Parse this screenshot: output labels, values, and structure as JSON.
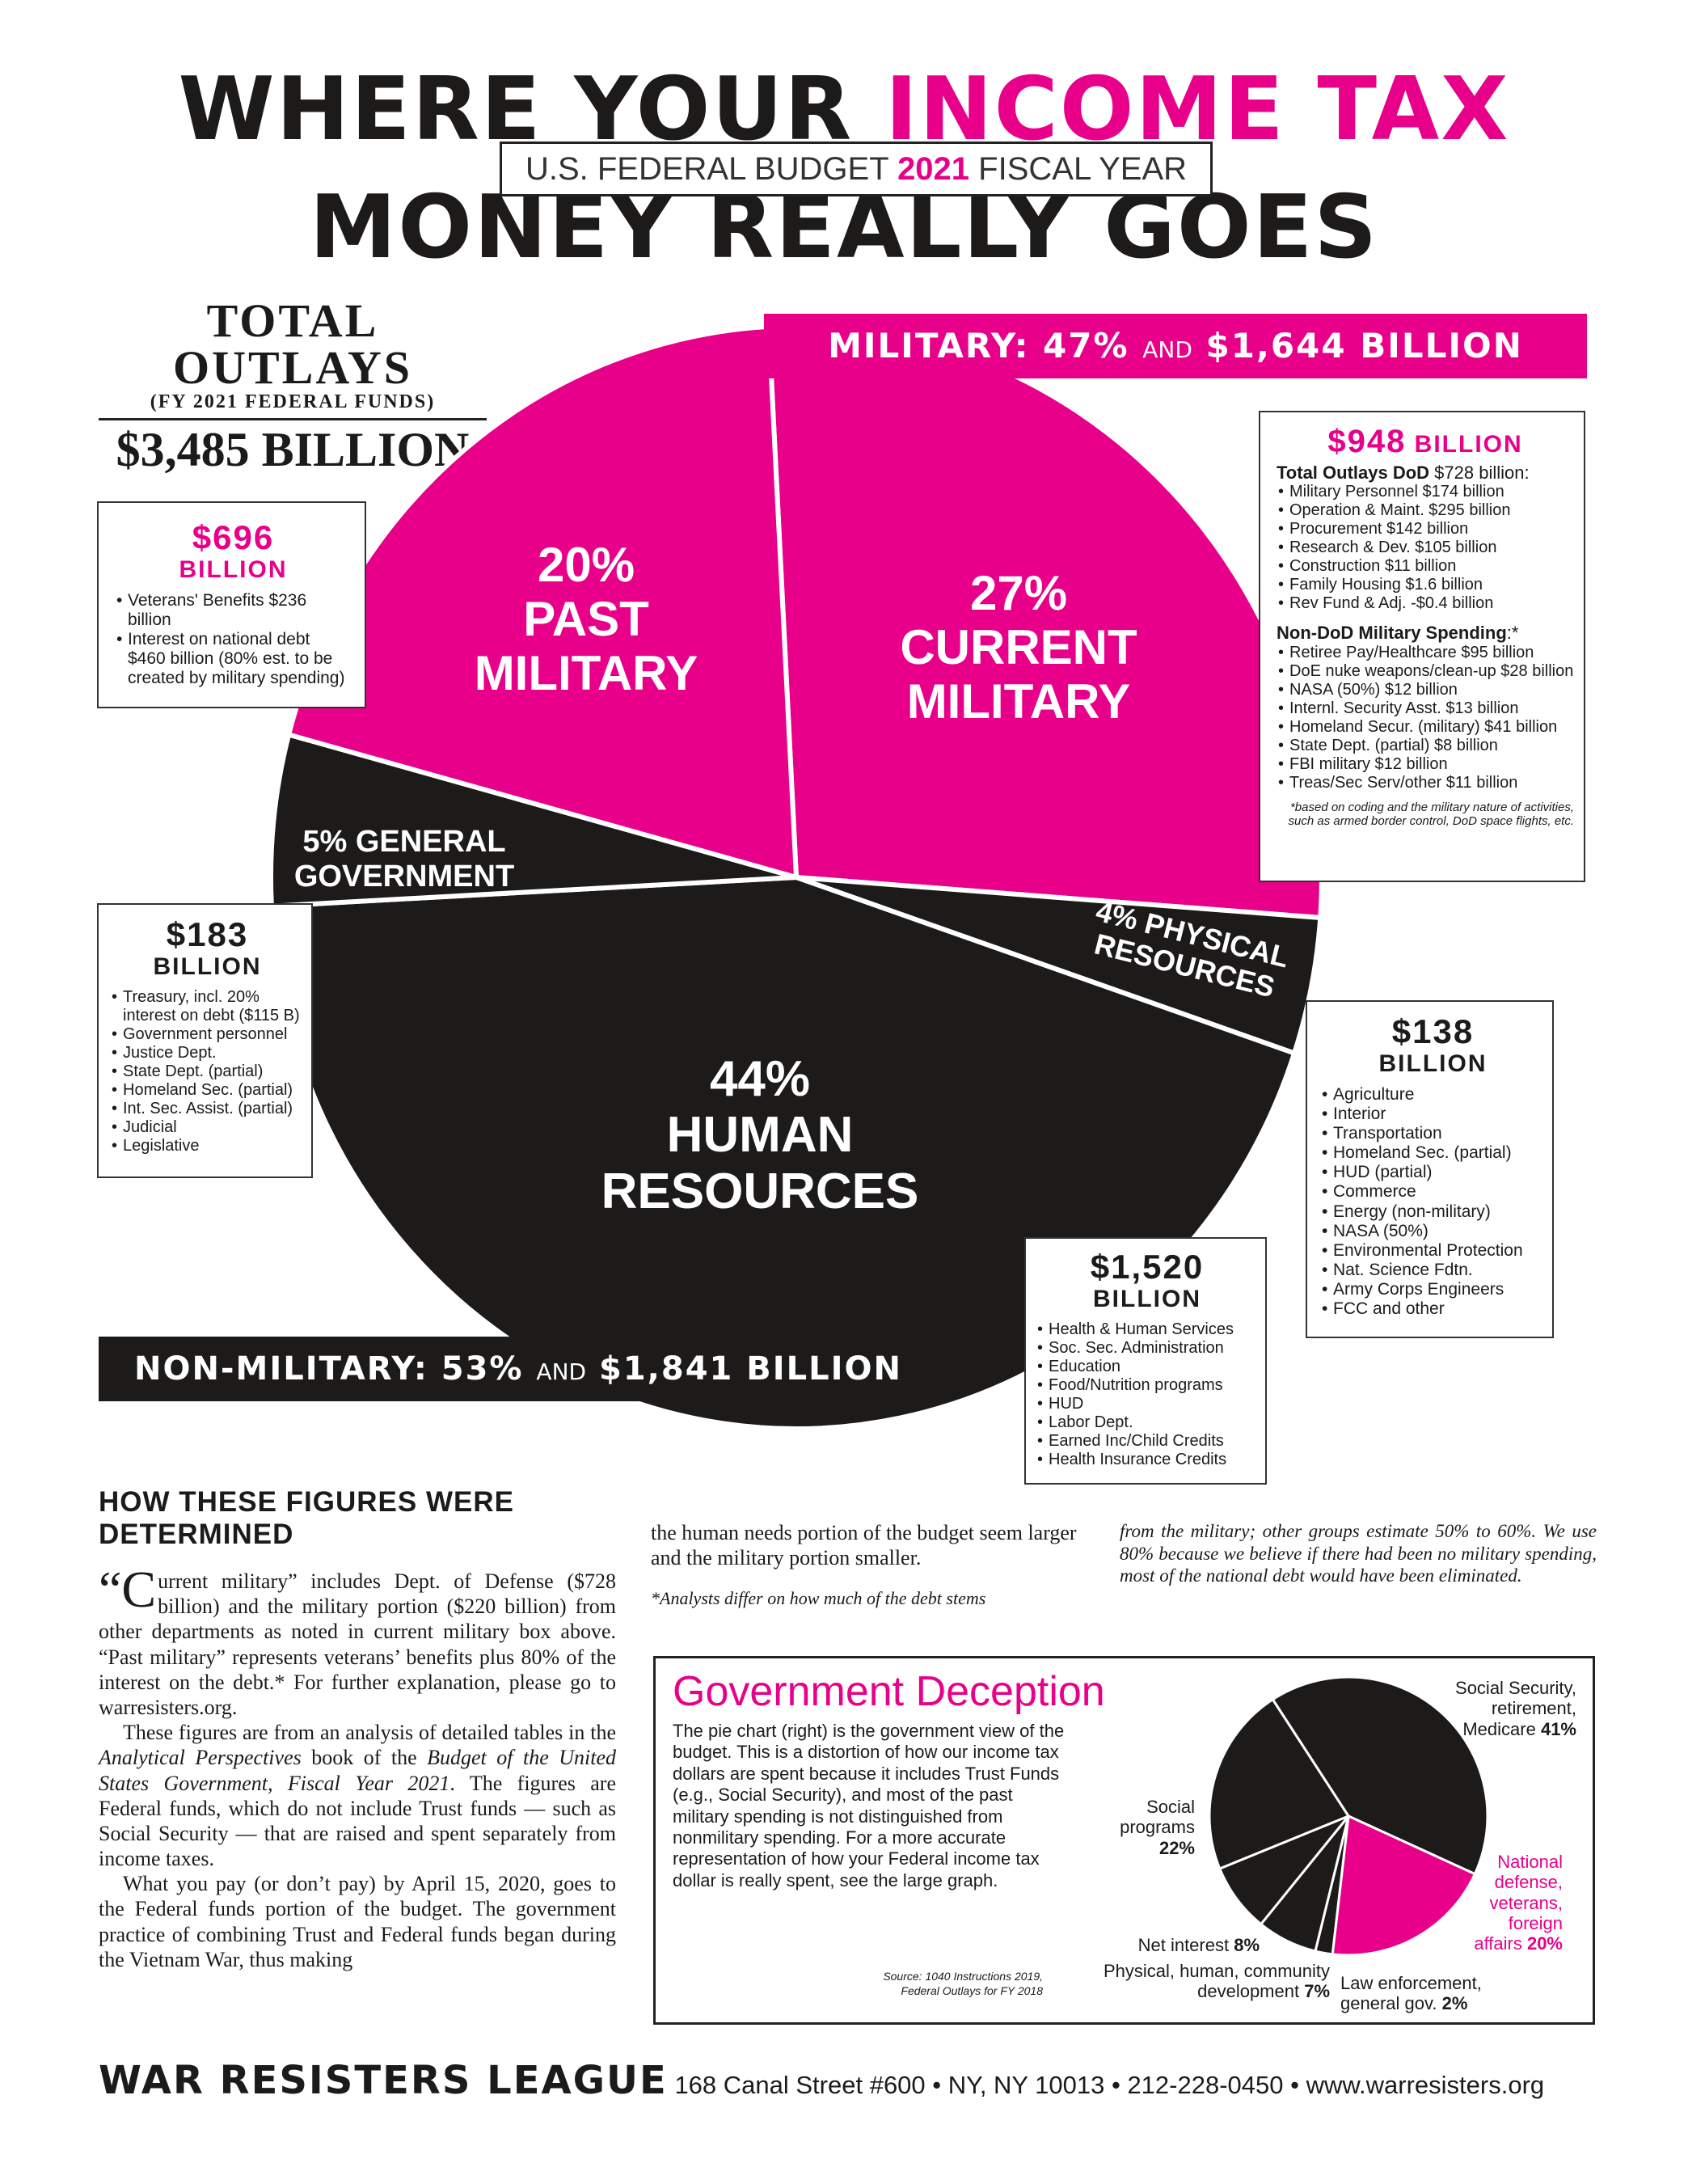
{
  "header": {
    "title_part1": "WHERE YOUR ",
    "title_part1_highlight": "INCOME TAX",
    "title_part2": "MONEY REALLY GOES",
    "subtitle_pre": "U.S. FEDERAL BUDGET ",
    "subtitle_year": "2021",
    "subtitle_post": " FISCAL YEAR"
  },
  "total": {
    "line1": "TOTAL OUTLAYS",
    "line2": "(FY 2021 FEDERAL FUNDS)",
    "amount": "$3,485 BILLION"
  },
  "banners": {
    "military_a": "MILITARY: 47% ",
    "military_and": "AND",
    "military_b": " $1,644 BILLION",
    "nonmil_a": "NON-MILITARY: 53% ",
    "nonmil_and": "AND",
    "nonmil_b": " $1,841 BILLION"
  },
  "chart_data": {
    "type": "pie",
    "slices": [
      {
        "label": "CURRENT MILITARY",
        "percent": 27,
        "value_billion": 948,
        "color": "#e8008b"
      },
      {
        "label": "PHYSICAL RESOURCES",
        "percent": 4,
        "value_billion": 138,
        "color": "#1d1a1a"
      },
      {
        "label": "HUMAN RESOURCES",
        "percent": 44,
        "value_billion": 1520,
        "color": "#1d1a1a"
      },
      {
        "label": "GENERAL GOVERNMENT",
        "percent": 5,
        "value_billion": 183,
        "color": "#1d1a1a"
      },
      {
        "label": "PAST MILITARY",
        "percent": 20,
        "value_billion": 696,
        "color": "#e8008b"
      }
    ]
  },
  "pie_labels": {
    "current": [
      "27%",
      "CURRENT",
      "MILITARY"
    ],
    "past": [
      "20%",
      "PAST",
      "MILITARY"
    ],
    "human": [
      "44%",
      "HUMAN",
      "RESOURCES"
    ],
    "general": [
      "5% GENERAL",
      "GOVERNMENT"
    ],
    "physical": [
      "4% PHYSICAL",
      "RESOURCES"
    ]
  },
  "boxes": {
    "past": {
      "amount": "$696",
      "unit": "BILLION",
      "items": [
        "Veterans' Benefits $236 billion",
        "Interest on national debt $460 billion (80% est. to be created by military spending)"
      ]
    },
    "current": {
      "amount": "$948",
      "unit": " BILLION",
      "dod_head": "Total Outlays DoD",
      "dod_head_value": " $728 billion:",
      "dod_items": [
        "Military Personnel $174 billion",
        "Operation & Maint. $295 billion",
        "Procurement $142 billion",
        "Research & Dev. $105 billion",
        "Construction $11 billion",
        "Family Housing $1.6 billion",
        "Rev Fund & Adj. -$0.4 billion"
      ],
      "nondod_head": "Non-DoD Military Spending",
      "nondod_head_suffix": ":*",
      "nondod_items": [
        "Retiree Pay/Healthcare $95 billion",
        "DoE nuke weapons/clean-up $28 billion",
        "NASA (50%) $12 billion",
        "Internl. Security Asst. $13 billion",
        "Homeland Secur. (military) $41 billion",
        "State Dept. (partial) $8 billion",
        "FBI military $12 billion",
        "Treas/Sec Serv/other $11 billion"
      ],
      "note": "*based on coding and the military nature of activities, such as armed border control, DoD space flights, etc."
    },
    "general": {
      "amount": "$183",
      "unit": "BILLION",
      "items": [
        "Treasury, incl. 20% interest on debt ($115 B)",
        "Government personnel",
        "Justice Dept.",
        "State Dept. (partial)",
        "Homeland Sec. (partial)",
        "Int. Sec. Assist. (partial)",
        "Judicial",
        "Legislative"
      ]
    },
    "physical": {
      "amount": "$138",
      "unit": "BILLION",
      "items": [
        "Agriculture",
        "Interior",
        "Transportation",
        "Homeland Sec. (partial)",
        "HUD (partial)",
        "Commerce",
        "Energy (non-military)",
        "NASA (50%)",
        "Environmental Protection",
        "Nat. Science Fdtn.",
        "Army Corps Engineers",
        "FCC and other"
      ]
    },
    "human": {
      "amount": "$1,520",
      "unit": "BILLION",
      "items": [
        "Health & Human Services",
        "Soc. Sec. Administration",
        "Education",
        "Food/Nutrition programs",
        "HUD",
        "Labor Dept.",
        "Earned Inc/Child Credits",
        "Health Insurance Credits"
      ]
    }
  },
  "article": {
    "heading": "HOW THESE FIGURES WERE DETERMINED",
    "p1_quote": "“C",
    "p1": "urrent military” includes Dept. of Defense ($728 billion) and the military portion ($220 billion) from other departments as noted in current military box above. “Past military” represents veterans’ benefits plus 80% of the interest on the debt.* For further explanation, please go to warresisters.org.",
    "p2_a": "These figures are from an analysis of detailed tables in the ",
    "p2_i1": "Analytical Perspectives",
    "p2_b": " book of the ",
    "p2_i2": "Budget of the United States Government, Fiscal Year 2021",
    "p2_c": ". The figures are Federal funds, which do not include Trust funds — such as Social Security — that are raised and spent separately from income taxes.",
    "p3": "What you pay (or don’t pay) by April 15, 2020, goes to the Federal funds portion of the budget. The government practice of combining Trust and Federal funds began during the Vietnam War, thus making",
    "p4": "the human needs portion of the budget seem larger and the military portion smaller.",
    "p5": "*Analysts differ on how much of the debt stems",
    "p6": "from the military; other groups estimate 50% to 60%. We use 80% because we believe if there had been no military spending, most of the national debt would have been eliminated."
  },
  "deception": {
    "title": "Government Deception",
    "text": "The pie chart (right) is the government view of the budget. This is a distortion of how our income tax dollars are spent because it includes Trust Funds (e.g., Social Security), and most of the past military spending is not distinguished from nonmilitary spending. For a more accurate representation of how your Federal income tax dollar is really spent, see the large graph.",
    "source_1": "Source: 1040 Instructions 2019,",
    "source_2": "Federal Outlays for FY 2018",
    "chart_data": {
      "type": "pie",
      "slices": [
        {
          "label": "Social Security, retirement, Medicare",
          "percent": 41,
          "color": "#1d1a1a"
        },
        {
          "label": "National defense, veterans, foreign affairs",
          "percent": 20,
          "color": "#e8008b"
        },
        {
          "label": "Law enforcement, general gov.",
          "percent": 2,
          "color": "#1d1a1a"
        },
        {
          "label": "Physical, human, community development",
          "percent": 7,
          "color": "#1d1a1a"
        },
        {
          "label": "Net interest",
          "percent": 8,
          "color": "#1d1a1a"
        },
        {
          "label": "Social programs",
          "percent": 22,
          "color": "#1d1a1a"
        }
      ]
    },
    "labels": {
      "ss": [
        "Social Security,",
        "retirement,",
        "Medicare ",
        "41%"
      ],
      "social": [
        "Social",
        "programs",
        "22%"
      ],
      "defense": [
        "National",
        "defense,",
        "veterans,",
        "foreign",
        "affairs ",
        "20%"
      ],
      "interest": [
        "Net interest ",
        "8%"
      ],
      "physical": [
        "Physical, human, community",
        "development ",
        "7%"
      ],
      "law": [
        "Law enforcement,",
        "general gov. ",
        "2%"
      ]
    }
  },
  "footer": {
    "org": "WAR RESISTERS LEAGUE",
    "address": " 168 Canal Street #600 • NY, NY 10013 • 212-228-0450 • www.warresisters.org"
  }
}
